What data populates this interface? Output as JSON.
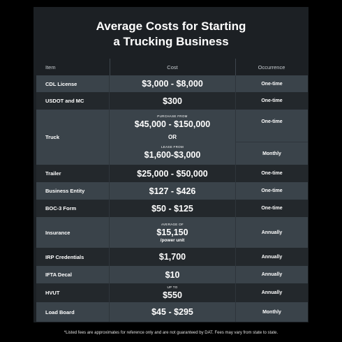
{
  "header": {
    "title": [
      "Average Costs for Starting",
      "a Trucking Business"
    ]
  },
  "table": {
    "columns": [
      "Item",
      "Cost",
      "Occurrence"
    ],
    "rows": [
      {
        "item": "CDL License",
        "cost": "$3,000 - $8,000",
        "occurrence": "One-time"
      },
      {
        "item": "USDOT and MC",
        "cost": "$300",
        "occurrence": "One-time"
      },
      {
        "item": "Truck",
        "options": [
          {
            "note": "PURCHASE FROM",
            "cost": "$45,000 - $150,000",
            "occurrence": "One-time"
          },
          {
            "note": "LEASE FROM",
            "cost": "$1,600-$3,000",
            "occurrence": "Monthly"
          }
        ],
        "separator": "OR"
      },
      {
        "item": "Trailer",
        "cost": "$25,000 - $50,000",
        "occurrence": "One-time"
      },
      {
        "item": "Business Entity",
        "cost": "$127 - $426",
        "occurrence": "One-time"
      },
      {
        "item": "BOC-3 Form",
        "cost": "$50 - $125",
        "occurrence": "One-time"
      },
      {
        "item": "Insurance",
        "note": "AVERAGE OF",
        "cost": "$15,150",
        "suffix": "/power unit",
        "occurrence": "Annually"
      },
      {
        "item": "IRP Credentials",
        "cost": "$1,700",
        "occurrence": "Annually"
      },
      {
        "item": "IFTA Decal",
        "cost": "$10",
        "occurrence": "Annually"
      },
      {
        "item": "HVUT",
        "note": "UP TO",
        "cost": "$550",
        "occurrence": "Annually"
      },
      {
        "item": "Load Board",
        "cost": "$45 - $295",
        "occurrence": "Monthly"
      }
    ]
  },
  "footnote": "*Listed fees are approximates for reference only and are not guaranteed by DAT. Fees may vary from state to state."
}
